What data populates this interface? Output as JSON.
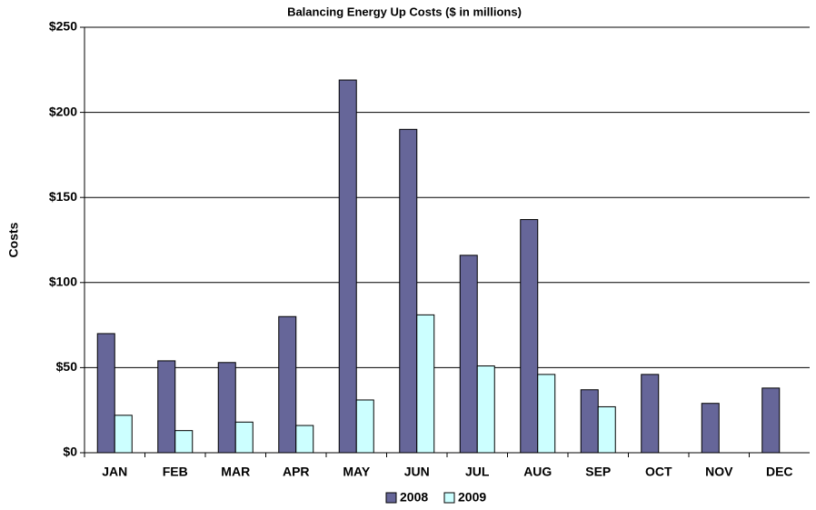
{
  "chart_data": {
    "type": "bar",
    "title": "Balancing Energy Up Costs ($ in millions)",
    "y_label": "Costs",
    "categories": [
      "JAN",
      "FEB",
      "MAR",
      "APR",
      "MAY",
      "JUN",
      "JUL",
      "AUG",
      "SEP",
      "OCT",
      "NOV",
      "DEC"
    ],
    "series": [
      {
        "name": "2008",
        "color": "#666699",
        "values": [
          70,
          54,
          53,
          80,
          219,
          190,
          116,
          137,
          37,
          46,
          29,
          38
        ]
      },
      {
        "name": "2009",
        "color": "#ccffff",
        "values": [
          22,
          13,
          18,
          16,
          31,
          81,
          51,
          46,
          27,
          null,
          null,
          null
        ]
      }
    ],
    "ylim": [
      0,
      250
    ],
    "yticks": [
      {
        "value": 0,
        "label": "$0"
      },
      {
        "value": 50,
        "label": "$50"
      },
      {
        "value": 100,
        "label": "$100"
      },
      {
        "value": 150,
        "label": "$150"
      },
      {
        "value": 200,
        "label": "$200"
      },
      {
        "value": 250,
        "label": "$250"
      }
    ],
    "grid": true,
    "legend": "bottom"
  }
}
